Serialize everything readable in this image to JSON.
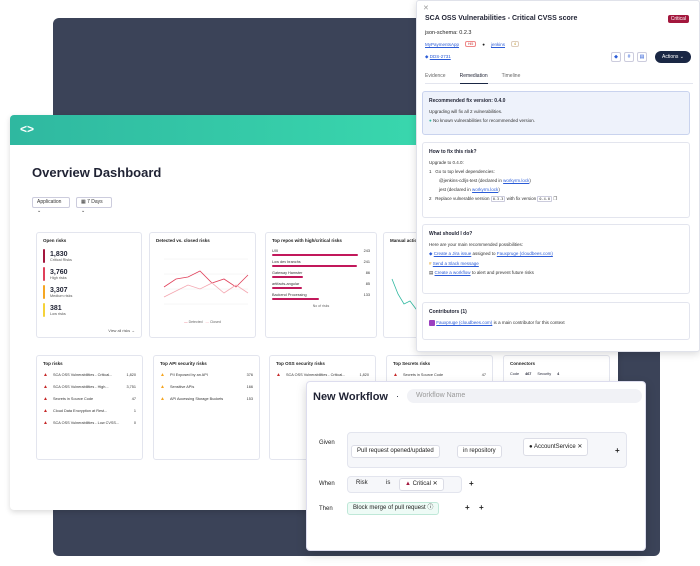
{
  "dashboard": {
    "title": "Overview Dashboard",
    "filters": [
      "Application",
      "7 Days"
    ],
    "open_risks": {
      "title": "Open risks",
      "items": [
        {
          "value": "1,830",
          "label": "Critical Risks",
          "color": "#a3173d"
        },
        {
          "value": "3,760",
          "label": "High risks",
          "color": "#e0405a"
        },
        {
          "value": "3,307",
          "label": "Medium risks",
          "color": "#f5a623"
        },
        {
          "value": "381",
          "label": "Low risks",
          "color": "#f5d23a"
        }
      ],
      "link": "View all risks →"
    },
    "detected_chart": {
      "title": "Detected vs. closed risks",
      "legend": [
        "Detected",
        "Closed"
      ]
    },
    "top_repos": {
      "title": "Top repos with high/critical risks",
      "items": [
        {
          "name": "UXI",
          "value": "243",
          "pct": 1.0
        },
        {
          "name": "Low dev branchs",
          "value": "241",
          "pct": 0.99
        },
        {
          "name": "Gateway Hamster",
          "value": "86",
          "pct": 0.36
        },
        {
          "name": "artifacts-angular",
          "value": "85",
          "pct": 0.35
        },
        {
          "name": "Backend Processing",
          "value": "133",
          "pct": 0.55
        }
      ],
      "xlabel": "No of risks"
    },
    "manual": {
      "title": "Manual actio"
    },
    "top_risks": {
      "title": "Top risks",
      "items": [
        {
          "name": "SCA OSS Vulnerabilities - Critical...",
          "value": "1,820"
        },
        {
          "name": "SCA OSS Vulnerabilities - High...",
          "value": "3,751"
        },
        {
          "name": "Secrets in Source Code",
          "value": "47"
        },
        {
          "name": "Cloud Data Encryption at Rest...",
          "value": "1"
        },
        {
          "name": "SCA OSS Vulnerabilities - Low CVSS...",
          "value": "0"
        }
      ]
    },
    "top_api": {
      "title": "Top API security risks",
      "items": [
        {
          "name": "PII Exposed by an API",
          "value": "376"
        },
        {
          "name": "Sensitive APIs",
          "value": "166"
        },
        {
          "name": "API Accessing Storage Buckets",
          "value": "153"
        }
      ]
    },
    "top_oss": {
      "title": "Top OSS security risks",
      "items": [
        {
          "name": "SCA OSS Vulnerabilities - Critical...",
          "value": "1,820"
        }
      ]
    },
    "top_secrets": {
      "title": "Top Secrets risks",
      "items": [
        {
          "name": "Secrets in Source Code",
          "value": "47"
        }
      ]
    },
    "connectors": {
      "title": "Connectors",
      "items": [
        "Code",
        "467",
        "Security",
        "4"
      ]
    }
  },
  "panel": {
    "title": "SCA OSS Vulnerabilities - Critical CVSS score",
    "badge": "Critical",
    "schema": "json-schema: 0.2.3",
    "app": "MyPaymentsApp",
    "app_tag": "Hi5",
    "repo": "jenkins",
    "repo_tag": "4",
    "jira": "DDS-2731",
    "actions": "Actions ⌄",
    "tabs": [
      "Evidence",
      "Remediation",
      "Timeline"
    ],
    "recommended": {
      "title": "Recommended fix version: 0.4.0",
      "line1": "Upgrading will fix all 2 vulnerabilities.",
      "line2": "No known vulnerabilities for recommended version."
    },
    "howto": {
      "title": "How to fix this risk?",
      "upgrade": "Upgrade to 0.4.0:",
      "step1": "Go to top level dependencies:",
      "dep1": "@jenkins-cd/js-test (declared in",
      "dep1_link": "workyrm.lock",
      "dep2": "jest (declared in",
      "dep2_link": "workyrm.lock",
      "step2a": "Replace vulnerable version",
      "v1": "0.3.3",
      "step2b": "with fix version",
      "v2": "0.4.0"
    },
    "what": {
      "title": "What should I do?",
      "intro": "Here are your main recommended possibilities:",
      "opt1": "Create a Jira issue",
      "opt1b": "assigned to",
      "opt1c": "Fauxpruge (cloudbees.com)",
      "opt2": "Send a Slack message",
      "opt3": "Create a workflow",
      "opt3b": "to alert and prevent future risks"
    },
    "contrib": {
      "title": "Contributors (1)",
      "link": "Fauxpruge (cloudbees.com)",
      "text": "is a main contributor for this context"
    }
  },
  "workflow": {
    "title": "New Workflow",
    "name_placeholder": "Workflow Name",
    "given": "Given",
    "given_chip1": "Pull request opened/updated",
    "given_chip2": "in repository",
    "given_chip3": "AccountService",
    "when": "When",
    "when_chip1": "Risk",
    "when_chip2": "is",
    "when_chip3": "Critical",
    "then": "Then",
    "then_chip1": "Block merge of pull request"
  }
}
